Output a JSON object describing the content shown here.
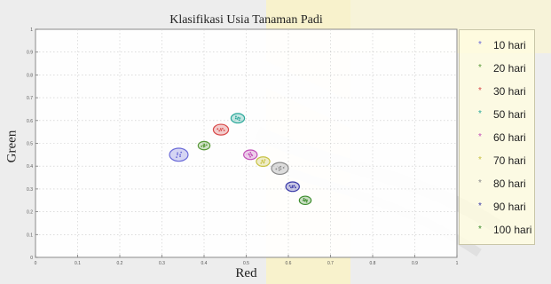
{
  "chart_data": {
    "type": "scatter",
    "title": "Klasifikasi Usia Tanaman Padi",
    "xlabel": "Red",
    "ylabel": "Green",
    "xlim": [
      0,
      1
    ],
    "ylim": [
      0,
      1
    ],
    "x_ticks": [
      "0",
      "0.1",
      "0.2",
      "0.3",
      "0.4",
      "0.5",
      "0.6",
      "0.7",
      "0.8",
      "0.9",
      "1"
    ],
    "y_ticks": [
      "0",
      "0.1",
      "0.2",
      "0.3",
      "0.4",
      "0.5",
      "0.6",
      "0.7",
      "0.8",
      "0.9",
      "1"
    ],
    "grid": true,
    "legend_position": "right",
    "series": [
      {
        "name": "10 hari",
        "color": "#6a6ad8",
        "x": [
          0.34
        ],
        "y": [
          0.45
        ],
        "r": [
          0.022
        ]
      },
      {
        "name": "20 hari",
        "color": "#5a9a3a",
        "x": [
          0.4
        ],
        "y": [
          0.49
        ],
        "r": [
          0.014
        ]
      },
      {
        "name": "30 hari",
        "color": "#d84a4a",
        "x": [
          0.44
        ],
        "y": [
          0.56
        ],
        "r": [
          0.018
        ]
      },
      {
        "name": "50 hari",
        "color": "#2aa89a",
        "x": [
          0.48
        ],
        "y": [
          0.61
        ],
        "r": [
          0.016
        ]
      },
      {
        "name": "60 hari",
        "color": "#c24fb8",
        "x": [
          0.51
        ],
        "y": [
          0.45
        ],
        "r": [
          0.016
        ]
      },
      {
        "name": "70 hari",
        "color": "#c8c244",
        "x": [
          0.54
        ],
        "y": [
          0.42
        ],
        "r": [
          0.016
        ]
      },
      {
        "name": "80 hari",
        "color": "#8a8a8a",
        "x": [
          0.58
        ],
        "y": [
          0.39
        ],
        "r": [
          0.02
        ]
      },
      {
        "name": "90 hari",
        "color": "#3a3aa8",
        "x": [
          0.61
        ],
        "y": [
          0.31
        ],
        "r": [
          0.016
        ]
      },
      {
        "name": "100 hari",
        "color": "#3c8c2c",
        "x": [
          0.64
        ],
        "y": [
          0.25
        ],
        "r": [
          0.014
        ]
      }
    ]
  },
  "legend_marker_glyph": "*"
}
